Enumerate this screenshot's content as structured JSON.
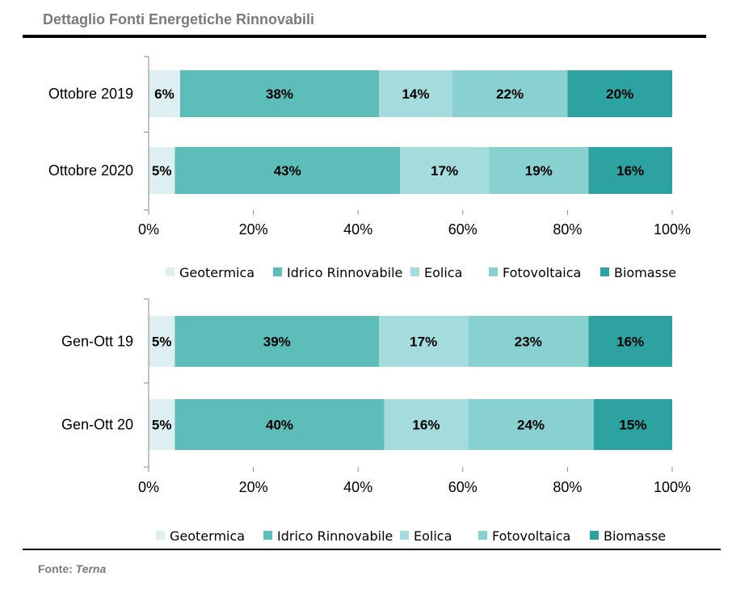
{
  "header": {
    "title": "Dettaglio Fonti Energetiche Rinnovabili"
  },
  "footer": {
    "source_label": "Fonte:",
    "source_name": "Terna"
  },
  "chart_data": [
    {
      "type": "bar",
      "orientation": "horizontal-stacked-100",
      "categories": [
        "Ottobre 2019",
        "Ottobre 2020"
      ],
      "series": [
        {
          "name": "Geotermica",
          "color": "#deeff2",
          "values": [
            6,
            5
          ]
        },
        {
          "name": "Idrico Rinnovabile",
          "color": "#5cbdb9",
          "values": [
            38,
            43
          ]
        },
        {
          "name": "Eolica",
          "color": "#a4dcdd",
          "values": [
            14,
            17
          ]
        },
        {
          "name": "Fotovoltaica",
          "color": "#89d0d0",
          "values": [
            22,
            19
          ]
        },
        {
          "name": "Biomasse",
          "color": "#2ca3a0",
          "values": [
            20,
            16
          ]
        }
      ],
      "xlim": [
        0,
        100
      ],
      "xticks": [
        "0%",
        "20%",
        "40%",
        "60%",
        "80%",
        "100%"
      ],
      "legend": "bottom"
    },
    {
      "type": "bar",
      "orientation": "horizontal-stacked-100",
      "categories": [
        "Gen-Ott 19",
        "Gen-Ott 20"
      ],
      "series": [
        {
          "name": "Geotermica",
          "color": "#deeff2",
          "values": [
            5,
            5
          ]
        },
        {
          "name": "Idrico Rinnovabile",
          "color": "#5cbdb9",
          "values": [
            39,
            40
          ]
        },
        {
          "name": "Eolica",
          "color": "#a4dcdd",
          "values": [
            17,
            16
          ]
        },
        {
          "name": "Fotovoltaica",
          "color": "#89d0d0",
          "values": [
            23,
            24
          ]
        },
        {
          "name": "Biomasse",
          "color": "#2ca3a0",
          "values": [
            16,
            15
          ]
        }
      ],
      "xlim": [
        0,
        100
      ],
      "xticks": [
        "0%",
        "20%",
        "40%",
        "60%",
        "80%",
        "100%"
      ],
      "legend": "bottom"
    }
  ]
}
